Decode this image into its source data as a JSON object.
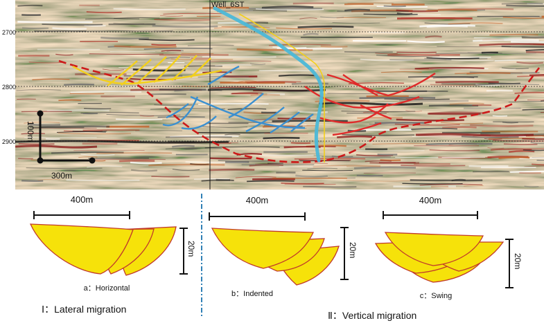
{
  "seismic": {
    "depth_ticks": [
      "2700",
      "2800",
      "2900"
    ],
    "well_label": "Well_6ST",
    "scale_vertical_label": "100m",
    "scale_horizontal_label": "300m"
  },
  "models": [
    {
      "width_label": "400m",
      "height_label": "20m",
      "name": "a：Horizontal"
    },
    {
      "width_label": "400m",
      "height_label": "20m",
      "name": "b：Indented"
    },
    {
      "width_label": "400m",
      "height_label": "20m",
      "name": "c：Swing"
    }
  ],
  "categories": {
    "lateral": "Ⅰ：Lateral migration",
    "vertical": "Ⅱ：Vertical migration"
  },
  "colors": {
    "sand_fill": "#f6e20a",
    "sand_outline": "#c0392b",
    "yellow_trace": "#f3d01a",
    "blue_trace": "#3a8fd0",
    "red_trace": "#e02a2a",
    "well_path": "#4bb8d8",
    "divider": "#2f7fb5"
  }
}
